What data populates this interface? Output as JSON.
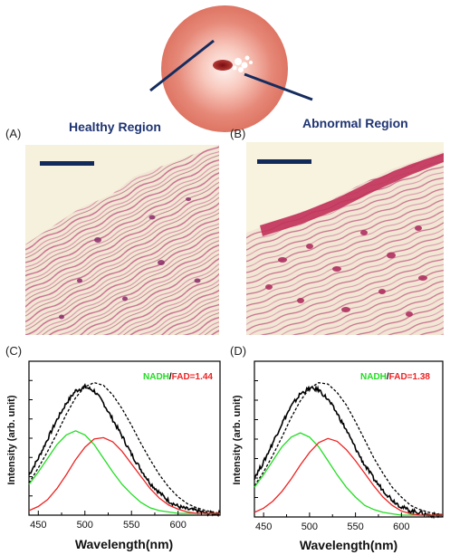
{
  "panels": {
    "a": {
      "letter": "(A)",
      "title": "Healthy Region"
    },
    "b": {
      "letter": "(B)",
      "title": "Abnormal Region"
    },
    "c": {
      "letter": "(C)",
      "ratio_nadh": "NADH",
      "ratio_sep": "/",
      "ratio_fad": "FAD",
      "ratio_value": "=1.44"
    },
    "d": {
      "letter": "(D)",
      "ratio_nadh": "NADH",
      "ratio_sep": "/",
      "ratio_fad": "FAD",
      "ratio_value": "=1.38"
    }
  },
  "colors": {
    "nadh": "#22dd22",
    "fad": "#ee2222",
    "measured": "#000000",
    "fit": "#000000",
    "title": "#1f3472",
    "scalebar": "#122a5a"
  },
  "chart_data": [
    {
      "type": "line",
      "id": "C",
      "xlabel": "Wavelength(nm)",
      "ylabel": "Intensity (arb. unit)",
      "xlim": [
        440,
        645
      ],
      "xticks": [
        450,
        500,
        550,
        600
      ],
      "series": [
        {
          "x": [
            440,
            450,
            460,
            470,
            480,
            490,
            500,
            510,
            520,
            530,
            540,
            550,
            560,
            570,
            580,
            590,
            600,
            610,
            620,
            630,
            645
          ],
          "values": [
            0.28,
            0.4,
            0.54,
            0.68,
            0.8,
            0.89,
            0.92,
            0.89,
            0.8,
            0.68,
            0.56,
            0.43,
            0.32,
            0.22,
            0.15,
            0.09,
            0.05,
            0.03,
            0.02,
            0.0,
            0.0
          ]
        },
        {
          "x": [
            440,
            450,
            460,
            470,
            480,
            490,
            500,
            510,
            520,
            530,
            540,
            550,
            560,
            570,
            580,
            590,
            600,
            610,
            620,
            630,
            645
          ],
          "values": [
            0.22,
            0.33,
            0.45,
            0.58,
            0.72,
            0.84,
            0.92,
            0.95,
            0.93,
            0.86,
            0.76,
            0.64,
            0.51,
            0.39,
            0.28,
            0.19,
            0.12,
            0.07,
            0.04,
            0.02,
            0.0
          ]
        },
        {
          "x": [
            440,
            450,
            460,
            470,
            480,
            490,
            500,
            510,
            520,
            530,
            540,
            550,
            560,
            570,
            580,
            590,
            600,
            610,
            620,
            630,
            645
          ],
          "values": [
            0.21,
            0.3,
            0.4,
            0.5,
            0.57,
            0.6,
            0.57,
            0.5,
            0.4,
            0.3,
            0.21,
            0.14,
            0.08,
            0.04,
            0.02,
            0.01,
            0.0,
            0.0,
            0.0,
            0.0,
            0.0
          ]
        },
        {
          "x": [
            440,
            450,
            460,
            470,
            480,
            490,
            500,
            510,
            520,
            530,
            540,
            550,
            560,
            570,
            580,
            590,
            600,
            610,
            620,
            630,
            645
          ],
          "values": [
            0.02,
            0.05,
            0.1,
            0.18,
            0.28,
            0.39,
            0.48,
            0.54,
            0.55,
            0.52,
            0.45,
            0.36,
            0.27,
            0.18,
            0.11,
            0.06,
            0.03,
            0.01,
            0.0,
            0.0,
            0.0
          ]
        }
      ]
    },
    {
      "type": "line",
      "id": "D",
      "xlabel": "Wavelength(nm)",
      "ylabel": "Intensity (arb. unit)",
      "xlim": [
        440,
        645
      ],
      "xticks": [
        450,
        500,
        550,
        600
      ],
      "series": [
        {
          "x": [
            440,
            450,
            460,
            470,
            480,
            490,
            500,
            510,
            520,
            530,
            540,
            550,
            560,
            570,
            580,
            590,
            600,
            610,
            620,
            630,
            645
          ],
          "values": [
            0.27,
            0.38,
            0.52,
            0.66,
            0.78,
            0.87,
            0.91,
            0.9,
            0.83,
            0.73,
            0.61,
            0.48,
            0.36,
            0.26,
            0.18,
            0.11,
            0.06,
            0.03,
            0.02,
            0.0,
            0.0
          ]
        },
        {
          "x": [
            440,
            450,
            460,
            470,
            480,
            490,
            500,
            510,
            520,
            530,
            540,
            550,
            560,
            570,
            580,
            590,
            600,
            610,
            620,
            630,
            645
          ],
          "values": [
            0.21,
            0.31,
            0.43,
            0.56,
            0.7,
            0.82,
            0.91,
            0.95,
            0.94,
            0.88,
            0.79,
            0.67,
            0.54,
            0.41,
            0.3,
            0.2,
            0.13,
            0.07,
            0.04,
            0.02,
            0.0
          ]
        },
        {
          "x": [
            440,
            450,
            460,
            470,
            480,
            490,
            500,
            510,
            520,
            530,
            540,
            550,
            560,
            570,
            580,
            590,
            600,
            610,
            620,
            630,
            645
          ],
          "values": [
            0.2,
            0.29,
            0.39,
            0.49,
            0.56,
            0.59,
            0.56,
            0.49,
            0.39,
            0.29,
            0.2,
            0.13,
            0.07,
            0.04,
            0.02,
            0.01,
            0.0,
            0.0,
            0.0,
            0.0,
            0.0
          ]
        },
        {
          "x": [
            440,
            450,
            460,
            470,
            480,
            490,
            500,
            510,
            520,
            530,
            540,
            550,
            560,
            570,
            580,
            590,
            600,
            610,
            620,
            630,
            645
          ],
          "values": [
            0.02,
            0.05,
            0.1,
            0.17,
            0.26,
            0.36,
            0.45,
            0.52,
            0.55,
            0.53,
            0.47,
            0.39,
            0.3,
            0.21,
            0.13,
            0.07,
            0.03,
            0.01,
            0.0,
            0.0,
            0.0
          ]
        }
      ]
    }
  ]
}
